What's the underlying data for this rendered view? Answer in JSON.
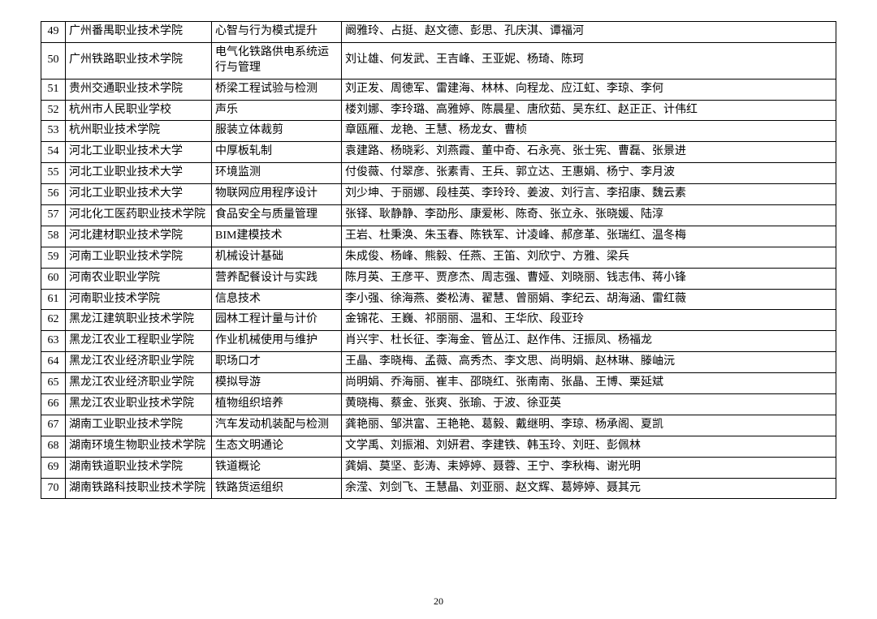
{
  "table": {
    "columns": {
      "num_width": 30,
      "inst_width": 180,
      "course_width": 160
    },
    "border_color": "#000000",
    "font_size": 14,
    "rows": [
      {
        "num": "49",
        "institution": "广州番禺职业技术学院",
        "course": "心智与行为模式提升",
        "names": "阚雅玲、占挺、赵文德、彭思、孔庆淇、谭福河"
      },
      {
        "num": "50",
        "institution": "广州铁路职业技术学院",
        "course": "电气化铁路供电系统运行与管理",
        "names": "刘让雄、何发武、王吉峰、王亚妮、杨琦、陈珂"
      },
      {
        "num": "51",
        "institution": "贵州交通职业技术学院",
        "course": "桥梁工程试验与检测",
        "names": "刘正发、周徳军、雷建海、林林、向程龙、应江虹、李琼、李何"
      },
      {
        "num": "52",
        "institution": "杭州市人民职业学校",
        "course": "声乐",
        "names": "楼刘娜、李玲璐、高雅婷、陈晨星、唐欣茹、吴东红、赵正正、计伟红"
      },
      {
        "num": "53",
        "institution": "杭州职业技术学院",
        "course": "服装立体裁剪",
        "names": "章瓯雁、龙艳、王慧、杨龙女、曹桢"
      },
      {
        "num": "54",
        "institution": "河北工业职业技术大学",
        "course": "中厚板轧制",
        "names": "袁建路、杨晓彩、刘燕霞、董中奇、石永亮、张士宪、曹磊、张景进"
      },
      {
        "num": "55",
        "institution": "河北工业职业技术大学",
        "course": "环境监测",
        "names": "付俊薇、付翠彦、张素青、王兵、郭立达、王惠娟、杨宁、李月波"
      },
      {
        "num": "56",
        "institution": "河北工业职业技术大学",
        "course": "物联网应用程序设计",
        "names": "刘少坤、于丽娜、段桂英、李玲玲、姜波、刘行言、李招康、魏云素"
      },
      {
        "num": "57",
        "institution": "河北化工医药职业技术学院",
        "course": "食品安全与质量管理",
        "names": "张铎、耿静静、李劭彤、康爱彬、陈奇、张立永、张晓媛、陆淳"
      },
      {
        "num": "58",
        "institution": "河北建材职业技术学院",
        "course": "BIM建模技术",
        "names": "王岩、杜秉涣、朱玉春、陈铁军、计凌峰、郝彦革、张瑞红、温冬梅"
      },
      {
        "num": "59",
        "institution": "河南工业职业技术学院",
        "course": "机械设计基础",
        "names": "朱成俊、杨峰、熊毅、任燕、王笛、刘欣宁、方雅、梁兵"
      },
      {
        "num": "60",
        "institution": "河南农业职业学院",
        "course": "营养配餐设计与实践",
        "names": "陈月英、王彦平、贾彦杰、周志强、曹娅、刘晓丽、钱志伟、蒋小锋"
      },
      {
        "num": "61",
        "institution": "河南职业技术学院",
        "course": "信息技术",
        "names": "李小强、徐海燕、娄松涛、翟慧、曾丽娟、李纪云、胡海涵、雷红薇"
      },
      {
        "num": "62",
        "institution": "黑龙江建筑职业技术学院",
        "course": "园林工程计量与计价",
        "names": "金锦花、王巍、祁丽丽、温和、王华欣、段亚玲"
      },
      {
        "num": "63",
        "institution": "黑龙江农业工程职业学院",
        "course": "作业机械使用与维护",
        "names": "肖兴宇、杜长征、李海金、管丛江、赵作伟、汪振凤、杨福龙"
      },
      {
        "num": "64",
        "institution": "黑龙江农业经济职业学院",
        "course": "职场口才",
        "names": "王晶、李晓梅、孟薇、高秀杰、李文思、尚明娟、赵林琳、滕岫沅"
      },
      {
        "num": "65",
        "institution": "黑龙江农业经济职业学院",
        "course": "模拟导游",
        "names": "尚明娟、乔海丽、崔丰、邵晓红、张南南、张晶、王博、栗延斌"
      },
      {
        "num": "66",
        "institution": "黑龙江农业职业技术学院",
        "course": "植物组织培养",
        "names": "黄晓梅、蔡金、张爽、张瑜、于波、徐亚英"
      },
      {
        "num": "67",
        "institution": "湖南工业职业技术学院",
        "course": "汽车发动机装配与检测",
        "names": "龚艳丽、邹洪富、王艳艳、葛毅、戴继明、李琼、杨承阁、夏凯"
      },
      {
        "num": "68",
        "institution": "湖南环境生物职业技术学院",
        "course": "生态文明通论",
        "names": "文学禹、刘振湘、刘妍君、李建铁、韩玉玲、刘旺、彭佩林"
      },
      {
        "num": "69",
        "institution": "湖南铁道职业技术学院",
        "course": "铁道概论",
        "names": "龚娟、莫坚、彭涛、耒婷婷、聂蓉、王宁、李秋梅、谢光明"
      },
      {
        "num": "70",
        "institution": "湖南铁路科技职业技术学院",
        "course": "铁路货运组织",
        "names": "余滢、刘剑飞、王慧晶、刘亚丽、赵文辉、葛婷婷、聂其元"
      }
    ]
  },
  "footer": {
    "page_number": "20"
  }
}
